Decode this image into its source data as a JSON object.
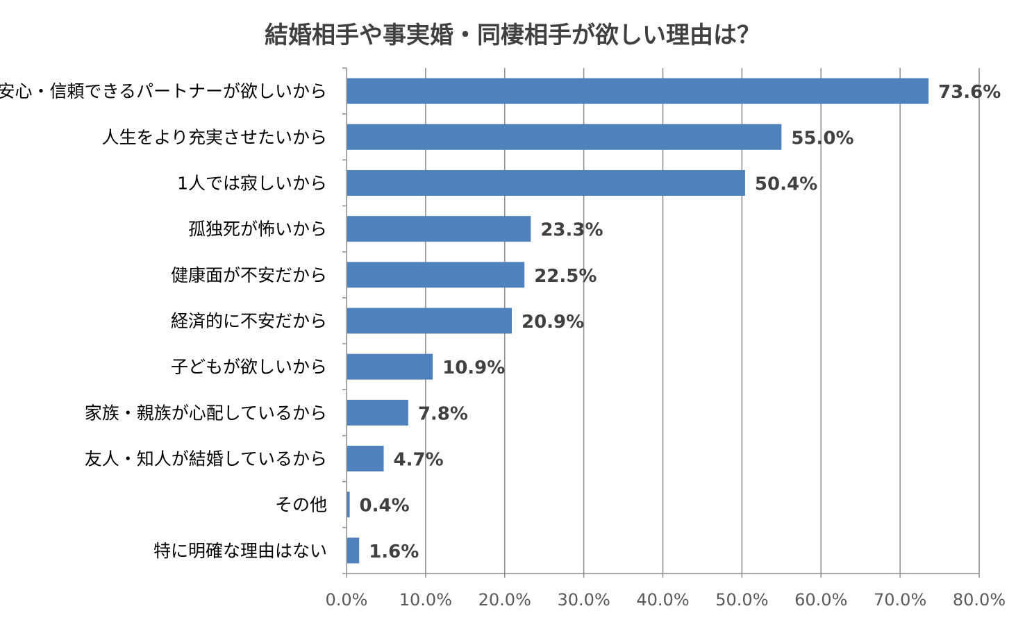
{
  "chart_data": {
    "type": "bar",
    "orientation": "horizontal",
    "title": "結婚相手や事実婚・同棲相手が欲しい理由は？",
    "categories": [
      "安心・信頼できるパートナーが欲しいから",
      "人生をより充実させたいから",
      "1人では寂しいから",
      "孤独死が怖いから",
      "健康面が不安だから",
      "経済的に不安だから",
      "子どもが欲しいから",
      "家族・親族が心配しているから",
      "友人・知人が結婚しているから",
      "その他",
      "特に明確な理由はない"
    ],
    "values": [
      73.6,
      55.0,
      50.4,
      23.3,
      22.5,
      20.9,
      10.9,
      7.8,
      4.7,
      0.4,
      1.6
    ],
    "data_labels": [
      "73.6%",
      "55.0%",
      "50.4%",
      "23.3%",
      "22.5%",
      "20.9%",
      "10.9%",
      "7.8%",
      "4.7%",
      "0.4%",
      "1.6%"
    ],
    "xlim": [
      0,
      80
    ],
    "x_ticks": [
      0,
      10,
      20,
      30,
      40,
      50,
      60,
      70,
      80
    ],
    "x_tick_labels": [
      "0.0%",
      "10.0%",
      "20.0%",
      "30.0%",
      "40.0%",
      "50.0%",
      "60.0%",
      "70.0%",
      "80.0%"
    ],
    "grid": true,
    "bar_color": "#4f81bd"
  }
}
